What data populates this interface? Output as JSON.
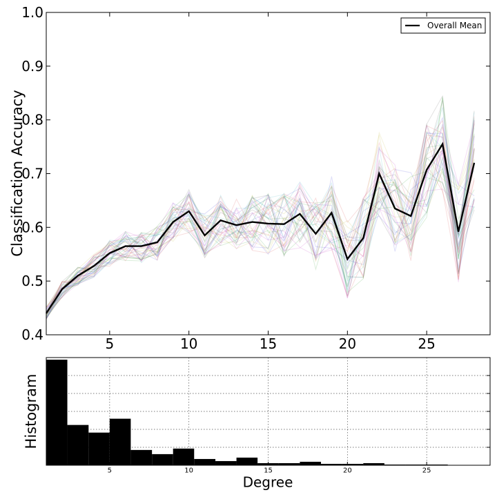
{
  "chart_data": [
    {
      "type": "line",
      "ylabel": "Classification Accuracy",
      "xlim": [
        1,
        29
      ],
      "ylim": [
        0.4,
        1.0
      ],
      "xticks": [
        5,
        10,
        15,
        20,
        25
      ],
      "yticks": [
        0.4,
        0.5,
        0.6,
        0.7,
        0.8,
        0.9,
        1.0
      ],
      "ytick_labels": [
        "0.4",
        "0.5",
        "0.6",
        "0.7",
        "0.8",
        "0.9",
        "1.0"
      ],
      "legend": {
        "entries": [
          "Overall Mean"
        ],
        "placement": "top-right"
      },
      "x": [
        1,
        2,
        3,
        4,
        5,
        6,
        7,
        8,
        9,
        10,
        11,
        12,
        13,
        14,
        15,
        16,
        17,
        18,
        19,
        20,
        21,
        22,
        23,
        24,
        25,
        26,
        27,
        28
      ],
      "series": [
        {
          "name": "Overall Mean",
          "color": "#000000",
          "values": [
            0.44,
            0.485,
            0.51,
            0.528,
            0.552,
            0.565,
            0.565,
            0.572,
            0.61,
            0.63,
            0.585,
            0.613,
            0.604,
            0.61,
            0.607,
            0.606,
            0.625,
            0.588,
            0.627,
            0.541,
            0.58,
            0.7,
            0.635,
            0.621,
            0.707,
            0.755,
            0.592,
            0.72
          ]
        }
      ],
      "background_series": {
        "count": 40,
        "opacity": 0.15,
        "colors": [
          "#1f1fd0",
          "#0b8a0b",
          "#d01f1f",
          "#16a7b5",
          "#b513b5",
          "#b5a616",
          "#333333"
        ]
      }
    },
    {
      "type": "bar",
      "ylabel": "Histogram",
      "xlabel": "Degree",
      "xlim": [
        1,
        29
      ],
      "xticks": [
        5,
        10,
        15,
        20,
        25
      ],
      "grid": true,
      "color": "#000000",
      "bin_edges": [
        1.0,
        2.33,
        3.67,
        5.0,
        6.33,
        7.67,
        9.0,
        10.33,
        11.67,
        13.0,
        14.33,
        15.67,
        17.0,
        18.33,
        19.67,
        21.0,
        22.33,
        23.67,
        25.0,
        26.33,
        27.67,
        29.0
      ],
      "counts": [
        152,
        58,
        47,
        67,
        22,
        16,
        24,
        9,
        6,
        11,
        3,
        3,
        5,
        2,
        2,
        3,
        1,
        1,
        1,
        0,
        0
      ]
    }
  ]
}
